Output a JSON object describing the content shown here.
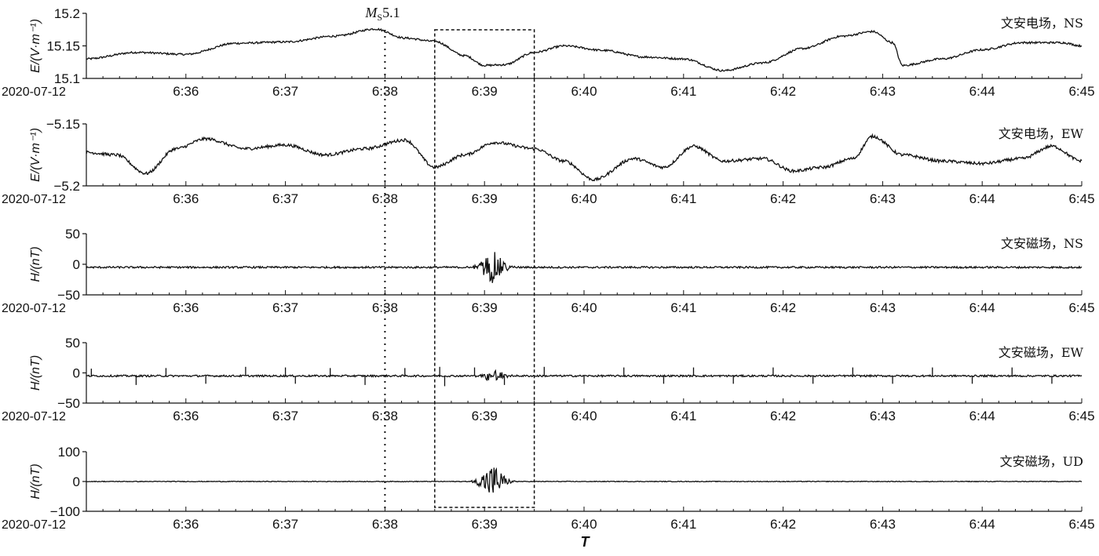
{
  "figure": {
    "xlabel": "T",
    "date_prefix": "2020-07-12",
    "event": {
      "label_main": "M",
      "label_sub": "S",
      "label_mag": "5.1",
      "time_min": 38.0
    },
    "highlight_window": {
      "start_min": 38.5,
      "end_min": 39.5
    }
  },
  "chart_data": [
    {
      "type": "line",
      "series_name": "文安电场，NS",
      "ylabel": "E/(V·m⁻¹)",
      "x_tick_labels": [
        "6:36",
        "6:37",
        "6:38",
        "6:39",
        "6:40",
        "6:41",
        "6:42",
        "6:43",
        "6:44",
        "6:45"
      ],
      "xlim": [
        "06:35:00",
        "06:45:00"
      ],
      "y_ticks": [
        15.1,
        15.15,
        15.2
      ],
      "y_tick_labels": [
        "15.1",
        "15.15",
        "15.2"
      ],
      "ylim": [
        15.1,
        15.2
      ],
      "x_min": [
        35.0,
        35.5,
        36.0,
        36.5,
        37.0,
        37.5,
        37.9,
        38.2,
        38.5,
        38.8,
        39.0,
        39.2,
        39.5,
        39.8,
        40.2,
        40.6,
        41.0,
        41.4,
        41.8,
        42.2,
        42.6,
        42.9,
        43.1,
        43.2,
        43.6,
        44.0,
        44.4,
        44.8,
        45.0
      ],
      "y": [
        15.13,
        15.14,
        15.137,
        15.154,
        15.156,
        15.165,
        15.176,
        15.162,
        15.157,
        15.135,
        15.12,
        15.121,
        15.14,
        15.15,
        15.143,
        15.133,
        15.13,
        15.112,
        15.124,
        15.146,
        15.165,
        15.172,
        15.155,
        15.12,
        15.13,
        15.144,
        15.155,
        15.155,
        15.15
      ],
      "noise": 0.0015,
      "spikes": []
    },
    {
      "type": "line",
      "series_name": "文安电场，EW",
      "ylabel": "E/(V·m⁻¹)",
      "x_tick_labels": [
        "6:36",
        "6:37",
        "6:38",
        "6:39",
        "6:40",
        "6:41",
        "6:42",
        "6:43",
        "6:44",
        "6:45"
      ],
      "xlim": [
        "06:35:00",
        "06:45:00"
      ],
      "y_ticks": [
        -5.15,
        -5.2
      ],
      "y_tick_labels": [
        "−5.15",
        "−5.2"
      ],
      "ylim": [
        -5.2,
        -5.15
      ],
      "x_min": [
        35.0,
        35.3,
        35.6,
        35.9,
        36.2,
        36.6,
        37.0,
        37.4,
        37.8,
        38.2,
        38.5,
        38.8,
        39.1,
        39.5,
        39.8,
        40.1,
        40.5,
        40.8,
        41.1,
        41.4,
        41.8,
        42.1,
        42.4,
        42.7,
        42.9,
        43.2,
        43.6,
        44.0,
        44.4,
        44.7,
        45.0
      ],
      "y": [
        -5.173,
        -5.175,
        -5.19,
        -5.17,
        -5.162,
        -5.17,
        -5.167,
        -5.175,
        -5.17,
        -5.163,
        -5.185,
        -5.175,
        -5.165,
        -5.17,
        -5.18,
        -5.195,
        -5.178,
        -5.185,
        -5.168,
        -5.18,
        -5.178,
        -5.188,
        -5.185,
        -5.178,
        -5.16,
        -5.175,
        -5.18,
        -5.182,
        -5.178,
        -5.168,
        -5.18
      ],
      "noise": 0.0012,
      "spikes": [
        {
          "x_min": 38.57,
          "y": -5.172
        }
      ]
    },
    {
      "type": "line",
      "series_name": "文安磁场，NS",
      "ylabel": "H/(nT)",
      "x_tick_labels": [
        "6:36",
        "6:37",
        "6:38",
        "6:39",
        "6:40",
        "6:41",
        "6:42",
        "6:43",
        "6:44",
        "6:45"
      ],
      "xlim": [
        "06:35:00",
        "06:45:00"
      ],
      "y_ticks": [
        50,
        0,
        -50
      ],
      "y_tick_labels": [
        "50",
        "0",
        "−50"
      ],
      "ylim": [
        -50,
        50
      ],
      "baseline": -5,
      "noise": 1.5,
      "burst": {
        "center_min": 39.08,
        "width_min": 0.12,
        "amplitude": 25
      },
      "spikes": []
    },
    {
      "type": "line",
      "series_name": "文安磁场，EW",
      "ylabel": "H/(nT)",
      "x_tick_labels": [
        "6:36",
        "6:37",
        "6:38",
        "6:39",
        "6:40",
        "6:41",
        "6:42",
        "6:43",
        "6:44",
        "6:45"
      ],
      "xlim": [
        "06:35:00",
        "06:45:00"
      ],
      "y_ticks": [
        50,
        0,
        -50
      ],
      "y_tick_labels": [
        "50",
        "0",
        "−50"
      ],
      "ylim": [
        -50,
        50
      ],
      "baseline": -5,
      "noise": 1.5,
      "burst": {
        "center_min": 39.1,
        "width_min": 0.1,
        "amplitude": 12
      },
      "spikes": [
        {
          "x_min": 35.05,
          "y": 7
        },
        {
          "x_min": 35.5,
          "y": -20
        },
        {
          "x_min": 35.8,
          "y": 8
        },
        {
          "x_min": 36.2,
          "y": -18
        },
        {
          "x_min": 36.6,
          "y": 10
        },
        {
          "x_min": 37.0,
          "y": 9
        },
        {
          "x_min": 37.1,
          "y": -18
        },
        {
          "x_min": 37.45,
          "y": 8
        },
        {
          "x_min": 37.8,
          "y": -20
        },
        {
          "x_min": 38.2,
          "y": 8
        },
        {
          "x_min": 38.55,
          "y": 10
        },
        {
          "x_min": 38.6,
          "y": -22
        },
        {
          "x_min": 38.9,
          "y": 9
        },
        {
          "x_min": 39.2,
          "y": -20
        },
        {
          "x_min": 39.6,
          "y": 10
        },
        {
          "x_min": 40.0,
          "y": -18
        },
        {
          "x_min": 40.4,
          "y": 9
        },
        {
          "x_min": 40.8,
          "y": -18
        },
        {
          "x_min": 41.1,
          "y": 9
        },
        {
          "x_min": 41.5,
          "y": -18
        },
        {
          "x_min": 41.9,
          "y": 9
        },
        {
          "x_min": 42.3,
          "y": -18
        },
        {
          "x_min": 42.7,
          "y": 9
        },
        {
          "x_min": 43.1,
          "y": -18
        },
        {
          "x_min": 43.5,
          "y": 9
        },
        {
          "x_min": 43.9,
          "y": -18
        },
        {
          "x_min": 44.3,
          "y": 9
        },
        {
          "x_min": 44.7,
          "y": -18
        }
      ]
    },
    {
      "type": "line",
      "series_name": "文安磁场，UD",
      "ylabel": "H/(nT)",
      "x_tick_labels": [
        "6:36",
        "6:37",
        "6:38",
        "6:39",
        "6:40",
        "6:41",
        "6:42",
        "6:43",
        "6:44",
        "6:45"
      ],
      "xlim": [
        "06:35:00",
        "06:45:00"
      ],
      "y_ticks": [
        100,
        0,
        -100
      ],
      "y_tick_labels": [
        "100",
        "0",
        "−100"
      ],
      "ylim": [
        -100,
        100
      ],
      "baseline": 0,
      "noise": 1.2,
      "burst": {
        "center_min": 39.08,
        "width_min": 0.12,
        "amplitude": 55
      },
      "spikes": []
    }
  ]
}
